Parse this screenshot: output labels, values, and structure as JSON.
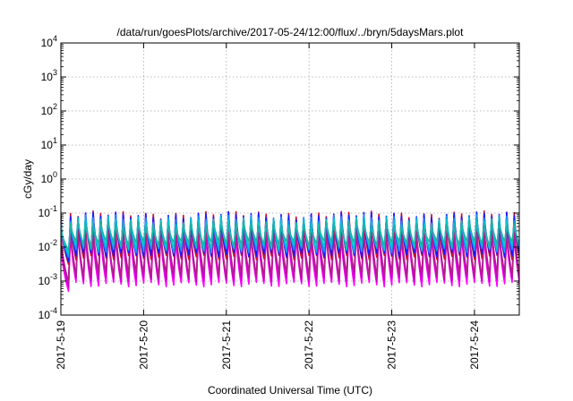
{
  "chart_data": {
    "type": "line",
    "title": "/data/run/goesPlots/archive/2017-05-24/12:00/flux/../bryn/5daysMars.plot",
    "xlabel": "Coordinated Universal Time (UTC)",
    "ylabel": "cGy/day",
    "yscale": "log",
    "ylim": [
      0.0001,
      10000
    ],
    "xlim": [
      "2017-05-19",
      "2017-05-24T13:00"
    ],
    "grid": true,
    "legend": "none",
    "x_ticks": [
      "2017-5-19",
      "2017-5-20",
      "2017-5-21",
      "2017-5-22",
      "2017-5-23",
      "2017-5-24"
    ],
    "y_ticks": [
      {
        "value": 0.0001,
        "base": "10",
        "exp": "-4"
      },
      {
        "value": 0.001,
        "base": "10",
        "exp": "-3"
      },
      {
        "value": 0.01,
        "base": "10",
        "exp": "-2"
      },
      {
        "value": 0.1,
        "base": "10",
        "exp": "-1"
      },
      {
        "value": 1,
        "base": "10",
        "exp": "0"
      },
      {
        "value": 10,
        "base": "10",
        "exp": "1"
      },
      {
        "value": 100,
        "base": "10",
        "exp": "2"
      },
      {
        "value": 1000,
        "base": "10",
        "exp": "3"
      },
      {
        "value": 10000,
        "base": "10",
        "exp": "4"
      }
    ],
    "sawtooth": {
      "cycles_per_day": 11,
      "rise_fraction": 0.28,
      "start_hour": 2.2,
      "initial_decay": {
        "start_value": 0.025,
        "min_value": 0.0005,
        "end_hour": 2.2
      }
    },
    "series": [
      {
        "color": "#ff00ff",
        "peak": 0.028,
        "trough": 0.0008
      },
      {
        "color": "#cc00cc",
        "peak": 0.035,
        "trough": 0.0011
      },
      {
        "color": "#b0208a",
        "peak": 0.045,
        "trough": 0.0015
      },
      {
        "color": "#c8102e",
        "peak": 0.09,
        "trough": 0.005
      },
      {
        "color": "#1a1aff",
        "peak": 0.085,
        "trough": 0.006
      },
      {
        "color": "#1e90ff",
        "peak": 0.07,
        "trough": 0.008
      },
      {
        "color": "#00c8c8",
        "peak": 0.06,
        "trough": 0.01
      },
      {
        "color": "#20b2aa",
        "peak": 0.05,
        "trough": 0.013
      }
    ]
  }
}
